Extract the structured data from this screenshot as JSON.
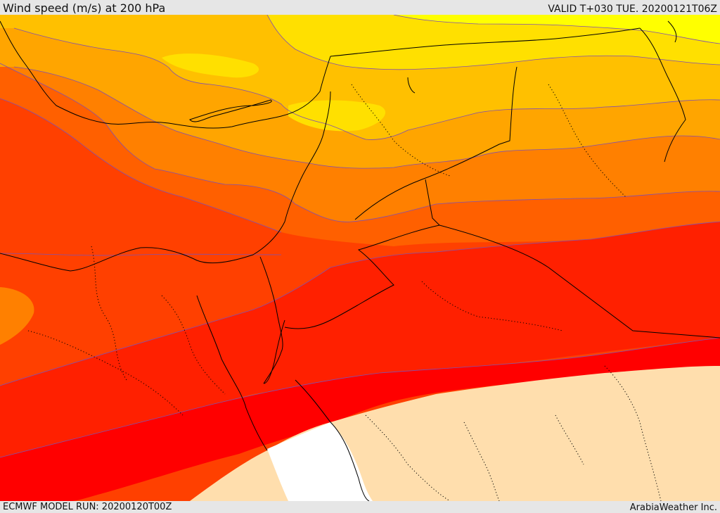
{
  "header": {
    "title": "Wind speed (m/s) at 200 hPa",
    "valid": "VALID T+030 TUE. 20200121T06Z"
  },
  "footer": {
    "model_run": "ECMWF MODEL RUN: 20200120T00Z",
    "credit": "ArabiaWeather Inc."
  },
  "map": {
    "palette": {
      "band_weakest": "#ffff00",
      "band_2": "#ffe000",
      "band_3": "#ffc000",
      "band_4": "#ffa500",
      "band_5": "#ff8000",
      "band_6": "#ff6000",
      "band_7": "#ff4000",
      "band_8": "#ff2000",
      "band_strongest": "#ff0000",
      "low_speed_region": "#ffdead",
      "no_data": "#ffffff",
      "contour_line": "#8050b0",
      "coastline": "#000000"
    }
  }
}
